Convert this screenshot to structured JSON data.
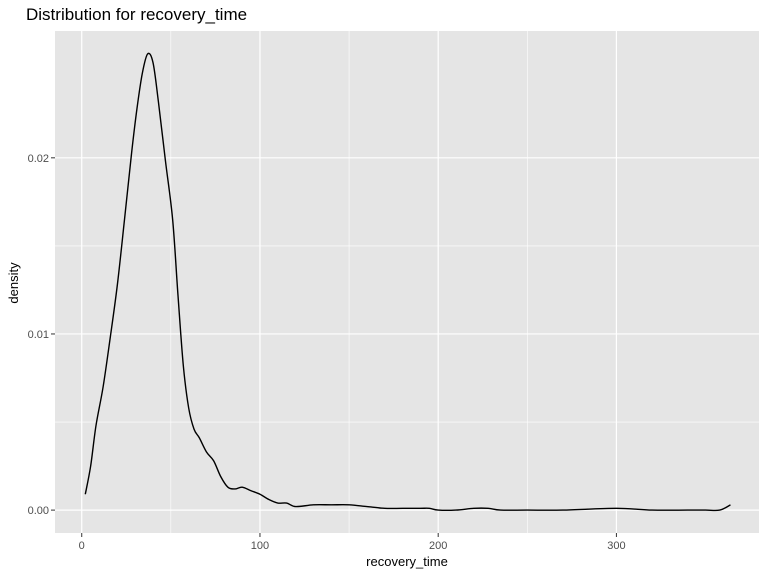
{
  "chart_data": {
    "type": "line",
    "title": "Distribution for recovery_time",
    "xlabel": "recovery_time",
    "ylabel": "density",
    "xlim": [
      -15,
      380
    ],
    "ylim": [
      -0.0013,
      0.0272
    ],
    "x_ticks": [
      0,
      100,
      200,
      300
    ],
    "x_tick_labels": [
      "0",
      "100",
      "200",
      "300"
    ],
    "y_ticks": [
      0.0,
      0.01,
      0.02
    ],
    "y_tick_labels": [
      "0.00",
      "0.01",
      "0.02"
    ],
    "grid": true,
    "legend": "none",
    "colors": {
      "panel": "#e5e5e5",
      "grid": "#ffffff",
      "line": "#000000",
      "tick": "#333333"
    },
    "series": [
      {
        "x": [
          2,
          5,
          8,
          12,
          16,
          20,
          24,
          28,
          31,
          34,
          37,
          40,
          43,
          47,
          51,
          54,
          57,
          60,
          63,
          66,
          70,
          74,
          78,
          82,
          86,
          90,
          95,
          100,
          105,
          110,
          115,
          120,
          130,
          140,
          150,
          160,
          170,
          180,
          190,
          195,
          200,
          210,
          220,
          228,
          235,
          250,
          270,
          300,
          320,
          340,
          350,
          358,
          364
        ],
        "y": [
          0.0009,
          0.0025,
          0.0048,
          0.007,
          0.0098,
          0.0128,
          0.0165,
          0.0203,
          0.0228,
          0.0248,
          0.0259,
          0.0254,
          0.0232,
          0.0198,
          0.0165,
          0.0122,
          0.0082,
          0.0058,
          0.0046,
          0.0041,
          0.0033,
          0.0028,
          0.0019,
          0.0013,
          0.0012,
          0.0013,
          0.0011,
          0.0009,
          0.0006,
          0.0004,
          0.0004,
          0.0002,
          0.0003,
          0.0003,
          0.0003,
          0.0002,
          0.0001,
          0.0001,
          0.0001,
          0.0001,
          0.0,
          0.0,
          0.0001,
          0.0001,
          0.0,
          0.0,
          0.0,
          0.0001,
          0.0,
          0.0,
          0.0,
          0.0,
          0.0003
        ]
      }
    ]
  }
}
